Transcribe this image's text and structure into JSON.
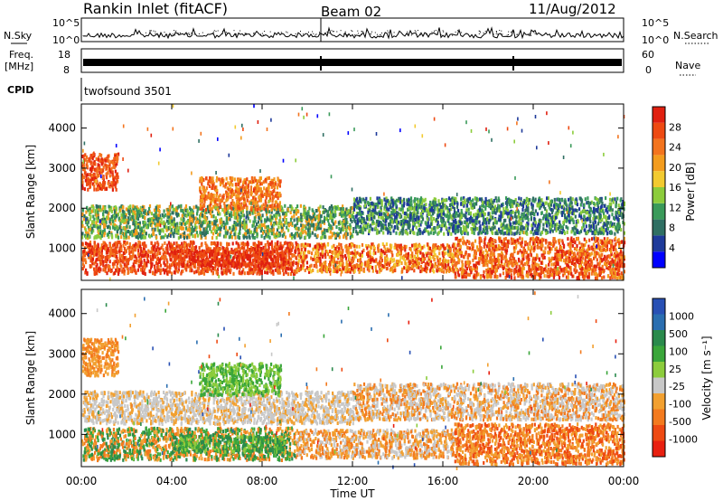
{
  "header": {
    "title": "Rankin Inlet (fitACF)",
    "beam": "Beam 02",
    "date": "11/Aug/2012"
  },
  "strip_labels": {
    "nsky": "N.Sky",
    "nsearch": "N.Search",
    "freq_line1": "Freq.",
    "freq_line2": "[MHz]",
    "nave": "Nave",
    "cpid": "CPID",
    "cpid_value": "twofsound 3501",
    "pow_hi": "10^5",
    "pow_lo": "10^0",
    "freq_hi": "18",
    "freq_lo": "8",
    "nave_hi": "60",
    "nave_lo": "0"
  },
  "colors": {
    "power_scale": [
      "#0000ff",
      "#1e3a9a",
      "#2f6f63",
      "#3a9a5a",
      "#8ccc3c",
      "#f2ca30",
      "#f39c1e",
      "#f3741e",
      "#ee4a12",
      "#e02010"
    ],
    "velocity_scale": [
      "#2850b4",
      "#2a6eb0",
      "#2a8a4c",
      "#3aa63a",
      "#8ccc3c",
      "#c8c8c8",
      "#f2a030",
      "#f37a1e",
      "#ee4a12",
      "#e82010"
    ]
  },
  "chart_data": [
    {
      "type": "heatmap",
      "name": "power",
      "ylabel": "Slant Range [km]",
      "yticks": [
        1000,
        2000,
        3000,
        4000
      ],
      "ylim": [
        200,
        4600
      ],
      "xlim_hours": [
        0,
        24
      ],
      "colorbar_label": "Power [dB]",
      "colorbar_ticks": [
        "4",
        "8",
        "12",
        "16",
        "20",
        "24",
        "28"
      ],
      "colorbar_range": [
        0,
        30
      ]
    },
    {
      "type": "heatmap",
      "name": "velocity",
      "ylabel": "Slant Range [km]",
      "yticks": [
        1000,
        2000,
        3000,
        4000
      ],
      "ylim": [
        200,
        4600
      ],
      "xlabel": "Time UT",
      "xticks": [
        "00:00",
        "04:00",
        "08:00",
        "12:00",
        "16:00",
        "20:00",
        "00:00"
      ],
      "xtick_hours": [
        0,
        4,
        8,
        12,
        16,
        20,
        24
      ],
      "colorbar_label": "Velocity [m s⁻¹]",
      "colorbar_ticks": [
        "1000",
        "500",
        "100",
        "25",
        "-25",
        "-100",
        "-500",
        "-1000"
      ]
    }
  ]
}
